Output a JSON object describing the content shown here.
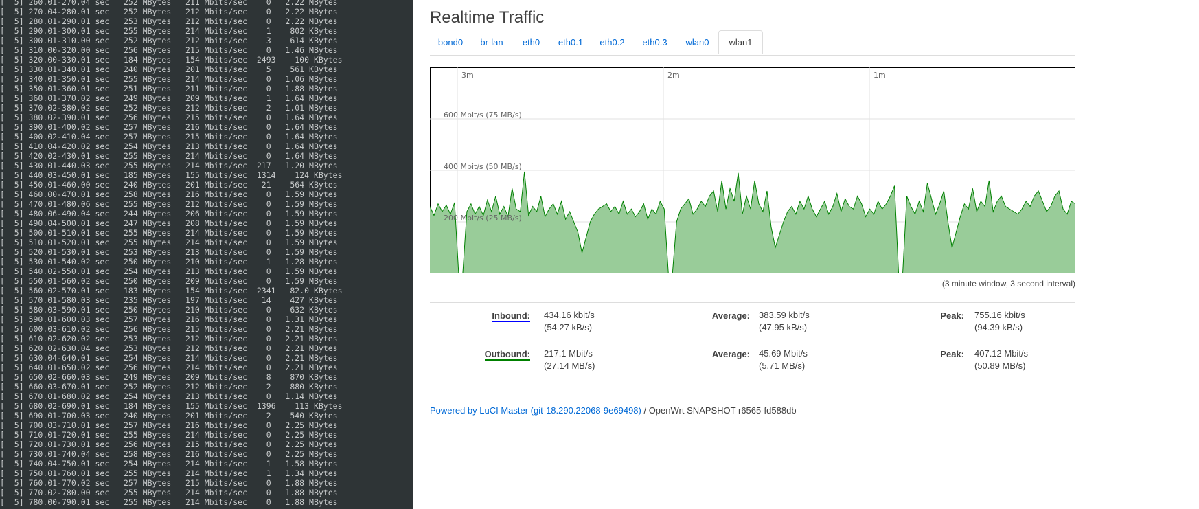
{
  "terminal": {
    "lines": [
      "[  5] 260.01-270.04 sec   252 MBytes   211 Mbits/sec    0   2.22 MBytes",
      "[  5] 270.04-280.01 sec   252 MBytes   212 Mbits/sec    0   2.22 MBytes",
      "[  5] 280.01-290.01 sec   253 MBytes   212 Mbits/sec    0   2.22 MBytes",
      "[  5] 290.01-300.01 sec   255 MBytes   214 Mbits/sec    1    802 KBytes",
      "[  5] 300.01-310.00 sec   252 MBytes   212 Mbits/sec    3    614 KBytes",
      "[  5] 310.00-320.00 sec   256 MBytes   215 Mbits/sec    0   1.46 MBytes",
      "[  5] 320.00-330.01 sec   184 MBytes   154 Mbits/sec  2493    100 KBytes",
      "[  5] 330.01-340.01 sec   240 MBytes   201 Mbits/sec    5    561 KBytes",
      "[  5] 340.01-350.01 sec   255 MBytes   214 Mbits/sec    0   1.06 MBytes",
      "[  5] 350.01-360.01 sec   251 MBytes   211 Mbits/sec    0   1.88 MBytes",
      "[  5] 360.01-370.02 sec   249 MBytes   209 Mbits/sec    1   1.64 MBytes",
      "[  5] 370.02-380.02 sec   252 MBytes   212 Mbits/sec    2   1.01 MBytes",
      "[  5] 380.02-390.01 sec   256 MBytes   215 Mbits/sec    0   1.64 MBytes",
      "[  5] 390.01-400.02 sec   257 MBytes   216 Mbits/sec    0   1.64 MBytes",
      "[  5] 400.02-410.04 sec   257 MBytes   215 Mbits/sec    0   1.64 MBytes",
      "[  5] 410.04-420.02 sec   254 MBytes   213 Mbits/sec    0   1.64 MBytes",
      "[  5] 420.02-430.01 sec   255 MBytes   214 Mbits/sec    0   1.64 MBytes",
      "[  5] 430.01-440.03 sec   255 MBytes   214 Mbits/sec  217   1.20 MBytes",
      "[  5] 440.03-450.01 sec   185 MBytes   155 Mbits/sec  1314    124 KBytes",
      "[  5] 450.01-460.00 sec   240 MBytes   201 Mbits/sec   21    564 KBytes",
      "[  5] 460.00-470.01 sec   258 MBytes   216 Mbits/sec    0   1.59 MBytes",
      "[  5] 470.01-480.06 sec   255 MBytes   212 Mbits/sec    0   1.59 MBytes",
      "[  5] 480.06-490.04 sec   244 MBytes   206 Mbits/sec    0   1.59 MBytes",
      "[  5] 490.04-500.01 sec   247 MBytes   208 Mbits/sec    0   1.59 MBytes",
      "[  5] 500.01-510.01 sec   255 MBytes   214 Mbits/sec    0   1.59 MBytes",
      "[  5] 510.01-520.01 sec   255 MBytes   214 Mbits/sec    0   1.59 MBytes",
      "[  5] 520.01-530.01 sec   253 MBytes   213 Mbits/sec    0   1.59 MBytes",
      "[  5] 530.01-540.02 sec   250 MBytes   210 Mbits/sec    1   1.28 MBytes",
      "[  5] 540.02-550.01 sec   254 MBytes   213 Mbits/sec    0   1.59 MBytes",
      "[  5] 550.01-560.02 sec   250 MBytes   209 Mbits/sec    0   1.59 MBytes",
      "[  5] 560.02-570.01 sec   183 MBytes   154 Mbits/sec  2341   82.0 KBytes",
      "[  5] 570.01-580.03 sec   235 MBytes   197 Mbits/sec   14    427 KBytes",
      "[  5] 580.03-590.01 sec   250 MBytes   210 Mbits/sec    0    632 KBytes",
      "[  5] 590.01-600.03 sec   257 MBytes   216 Mbits/sec    0   1.31 MBytes",
      "[  5] 600.03-610.02 sec   256 MBytes   215 Mbits/sec    0   2.21 MBytes",
      "[  5] 610.02-620.02 sec   253 MBytes   212 Mbits/sec    0   2.21 MBytes",
      "[  5] 620.02-630.04 sec   253 MBytes   212 Mbits/sec    0   2.21 MBytes",
      "[  5] 630.04-640.01 sec   254 MBytes   214 Mbits/sec    0   2.21 MBytes",
      "[  5] 640.01-650.02 sec   256 MBytes   214 Mbits/sec    0   2.21 MBytes",
      "[  5] 650.02-660.03 sec   249 MBytes   209 Mbits/sec    8    870 KBytes",
      "[  5] 660.03-670.01 sec   252 MBytes   212 Mbits/sec    2    880 KBytes",
      "[  5] 670.01-680.02 sec   254 MBytes   213 Mbits/sec    0   1.14 MBytes",
      "[  5] 680.02-690.01 sec   184 MBytes   155 Mbits/sec  1396    113 KBytes",
      "[  5] 690.01-700.03 sec   240 MBytes   201 Mbits/sec    2    540 KBytes",
      "[  5] 700.03-710.01 sec   257 MBytes   216 Mbits/sec    0   2.25 MBytes",
      "[  5] 710.01-720.01 sec   255 MBytes   214 Mbits/sec    0   2.25 MBytes",
      "[  5] 720.01-730.01 sec   256 MBytes   215 Mbits/sec    0   2.25 MBytes",
      "[  5] 730.01-740.04 sec   258 MBytes   216 Mbits/sec    0   2.25 MBytes",
      "[  5] 740.04-750.01 sec   254 MBytes   214 Mbits/sec    1   1.58 MBytes",
      "[  5] 750.01-760.01 sec   255 MBytes   214 Mbits/sec    1   1.34 MBytes",
      "[  5] 760.01-770.02 sec   257 MBytes   215 Mbits/sec    0   1.88 MBytes",
      "[  5] 770.02-780.00 sec   255 MBytes   214 Mbits/sec    0   1.88 MBytes",
      "[  5] 780.00-790.01 sec   255 MBytes   214 Mbits/sec    0   1.88 MBytes"
    ]
  },
  "page": {
    "title": "Realtime Traffic"
  },
  "tabs": [
    {
      "label": "bond0",
      "active": false
    },
    {
      "label": "br-lan",
      "active": false
    },
    {
      "label": "eth0",
      "active": false
    },
    {
      "label": "eth0.1",
      "active": false
    },
    {
      "label": "eth0.2",
      "active": false
    },
    {
      "label": "eth0.3",
      "active": false
    },
    {
      "label": "wlan0",
      "active": false
    },
    {
      "label": "wlan1",
      "active": true
    }
  ],
  "chart_data": {
    "type": "area",
    "time_labels": [
      "3m",
      "2m",
      "1m"
    ],
    "y_labels": [
      "600 Mbit/s (75 MB/s)",
      "400 Mbit/s (50 MB/s)",
      "200 Mbit/s (25 MB/s)"
    ],
    "y_values_mbit": [
      600,
      400,
      200
    ],
    "ylim": [
      0,
      800
    ],
    "inbound_color": "#0000ff",
    "outbound_color": "#008000",
    "outbound_fill": "#99cc99",
    "outbound_mbit": [
      260,
      225,
      270,
      240,
      265,
      230,
      275,
      0,
      0,
      240,
      270,
      230,
      260,
      225,
      285,
      240,
      300,
      230,
      260,
      220,
      330,
      250,
      240,
      395,
      225,
      260,
      240,
      300,
      220,
      250,
      270,
      230,
      280,
      210,
      240,
      200,
      160,
      80,
      140,
      200,
      230,
      250,
      260,
      270,
      240,
      260,
      230,
      280,
      230,
      250,
      220,
      240,
      270,
      210,
      250,
      230,
      280,
      250,
      0,
      0,
      200,
      250,
      270,
      290,
      230,
      250,
      280,
      260,
      300,
      320,
      240,
      360,
      250,
      330,
      280,
      390,
      230,
      300,
      250,
      360,
      270,
      240,
      320,
      180,
      100,
      150,
      200,
      240,
      260,
      230,
      280,
      250,
      300,
      250,
      220,
      250,
      280,
      230,
      260,
      310,
      240,
      290,
      260,
      250,
      300,
      270,
      220,
      250,
      230,
      280,
      250,
      270,
      300,
      340,
      0,
      0,
      300,
      260,
      230,
      280,
      240,
      350,
      290,
      230,
      270,
      320,
      200,
      100,
      160,
      220,
      270,
      250,
      330,
      240,
      280,
      260,
      360,
      240,
      280,
      300,
      260,
      250,
      240,
      230,
      250,
      280,
      260,
      300,
      320,
      280,
      240,
      260,
      300,
      320,
      250,
      230,
      280,
      270
    ],
    "inbound_kbit": [
      434
    ],
    "window_note": "(3 minute window, 3 second interval)"
  },
  "stats": {
    "inbound": {
      "label": "Inbound:",
      "current": "434.16 kbit/s",
      "current_sub": "(54.27 kB/s)",
      "average_label": "Average:",
      "average": "383.59 kbit/s",
      "average_sub": "(47.95 kB/s)",
      "peak_label": "Peak:",
      "peak": "755.16 kbit/s",
      "peak_sub": "(94.39 kB/s)"
    },
    "outbound": {
      "label": "Outbound:",
      "current": "217.1 Mbit/s",
      "current_sub": "(27.14 MB/s)",
      "average_label": "Average:",
      "average": "45.69 Mbit/s",
      "average_sub": "(5.71 MB/s)",
      "peak_label": "Peak:",
      "peak": "407.12 Mbit/s",
      "peak_sub": "(50.89 MB/s)"
    }
  },
  "footer": {
    "link_text": "Powered by LuCI Master (git-18.290.22068-9e69498)",
    "rest_text": " / OpenWrt SNAPSHOT r6565-fd588db"
  }
}
